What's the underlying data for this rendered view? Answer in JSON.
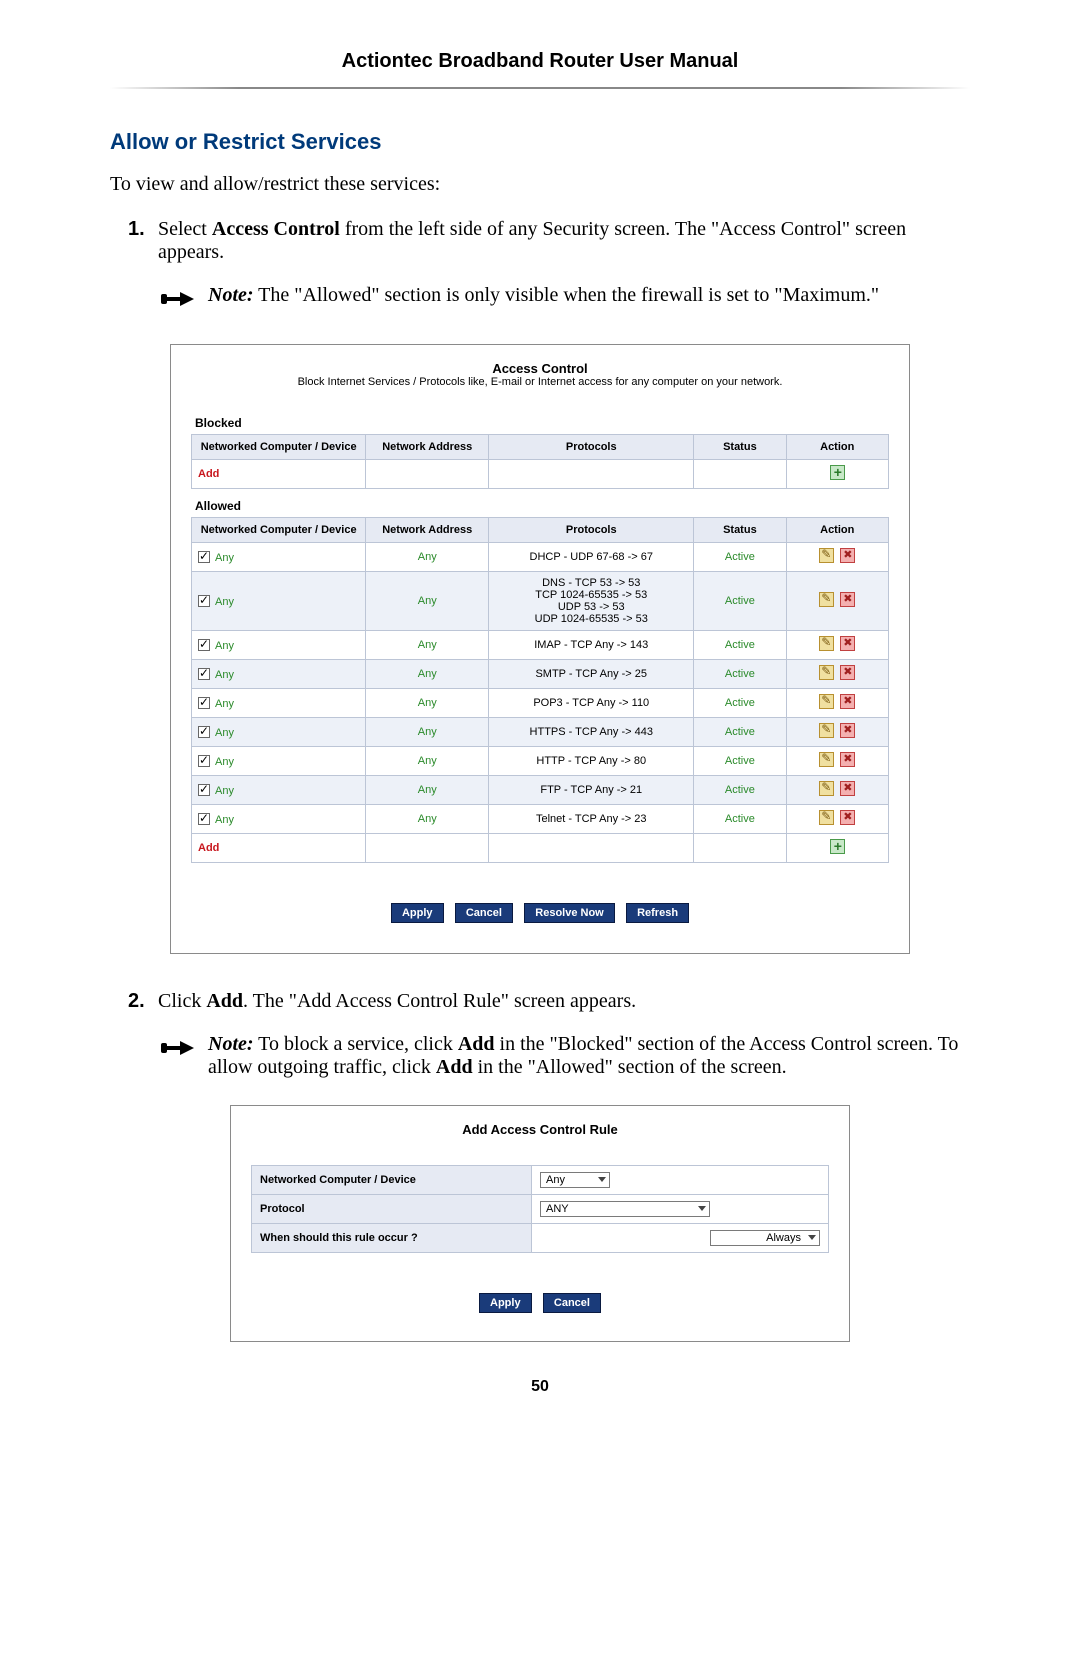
{
  "header": {
    "title": "Actiontec Broadband Router User Manual"
  },
  "section_title": "Allow or Restrict Services",
  "intro": "To view and allow/restrict these services:",
  "steps": {
    "s1": {
      "num": "1.",
      "pre": "Select ",
      "bold": "Access Control",
      "post": " from the left side of any Security screen. The \"Access Control\" screen appears."
    },
    "s2": {
      "num": "2.",
      "pre": "Click ",
      "bold": "Add",
      "post": ". The \"Add Access Control Rule\" screen appears."
    }
  },
  "notes": {
    "n1": {
      "label": "Note:",
      "text": " The \"Allowed\" section is only visible when the firewall is set to \"Maximum.\""
    },
    "n2": {
      "label": "Note:",
      "t1": " To block a service, click ",
      "b1": "Add",
      "t2": " in the \"Blocked\" section of the Access Control screen. To allow outgoing traffic, click ",
      "b2": "Add",
      "t3": " in the \"Allowed\" section of the screen."
    }
  },
  "shot1": {
    "title": "Access Control",
    "subtitle": "Block Internet Services / Protocols like, E-mail or Internet access for any computer on your network.",
    "blocked_label": "Blocked",
    "allowed_label": "Allowed",
    "headers": {
      "device": "Networked Computer / Device",
      "addr": "Network Address",
      "proto": "Protocols",
      "status": "Status",
      "action": "Action"
    },
    "add": "Add",
    "any": "Any",
    "active": "Active",
    "rows": [
      {
        "proto": "DHCP - UDP 67-68 -> 67"
      },
      {
        "proto": "DNS - TCP 53 -> 53\nTCP 1024-65535 -> 53\nUDP 53 -> 53\nUDP 1024-65535 -> 53"
      },
      {
        "proto": "IMAP - TCP Any -> 143"
      },
      {
        "proto": "SMTP - TCP Any -> 25"
      },
      {
        "proto": "POP3 - TCP Any -> 110"
      },
      {
        "proto": "HTTPS - TCP Any -> 443"
      },
      {
        "proto": "HTTP - TCP Any -> 80"
      },
      {
        "proto": "FTP - TCP Any -> 21"
      },
      {
        "proto": "Telnet - TCP Any -> 23"
      }
    ],
    "buttons": {
      "apply": "Apply",
      "cancel": "Cancel",
      "resolve": "Resolve Now",
      "refresh": "Refresh"
    }
  },
  "shot2": {
    "title": "Add Access Control Rule",
    "row1_label": "Networked Computer / Device",
    "row1_value": "Any",
    "row2_label": "Protocol",
    "row2_value": "ANY",
    "row3_label": "When should this rule occur ?",
    "row3_value": "Always",
    "buttons": {
      "apply": "Apply",
      "cancel": "Cancel"
    }
  },
  "page_number": "50"
}
